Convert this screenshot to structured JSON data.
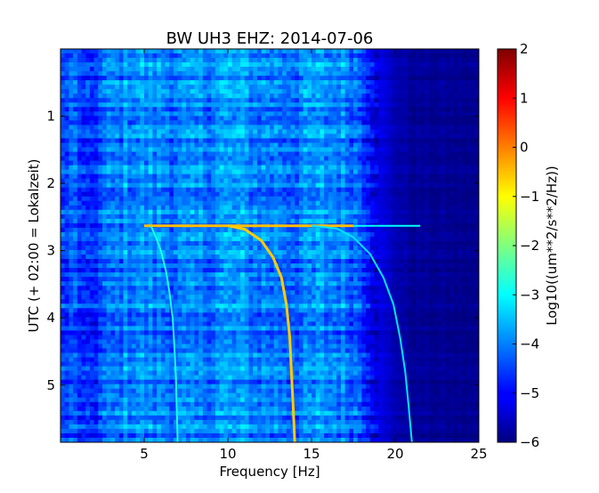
{
  "chart_data": {
    "type": "heatmap",
    "title": "BW UH3 EHZ: 2014-07-06",
    "xlabel": "Frequency [Hz]",
    "ylabel": "UTC (+ 02:00 = Lokalzeit)",
    "colorbar_label": "Log10((um**2/s**2/Hz))",
    "xlim": [
      0,
      25
    ],
    "ylim": [
      5.85,
      0
    ],
    "x_ticks": [
      5,
      10,
      15,
      20,
      25
    ],
    "y_ticks": [
      1,
      2,
      3,
      4,
      5
    ],
    "color_range": [
      -6,
      2
    ],
    "colorbar_ticks": [
      2,
      1,
      0,
      -1,
      -2,
      -3,
      -4,
      -5,
      -6
    ],
    "colormap": "jet",
    "background_level_hz_profile": [
      {
        "x": 0.0,
        "v": -4.6
      },
      {
        "x": 1.0,
        "v": -4.3
      },
      {
        "x": 1.5,
        "v": -5.0
      },
      {
        "x": 2.5,
        "v": -4.3
      },
      {
        "x": 4.0,
        "v": -3.9
      },
      {
        "x": 6.0,
        "v": -4.0
      },
      {
        "x": 8.0,
        "v": -4.1
      },
      {
        "x": 10.0,
        "v": -3.8
      },
      {
        "x": 12.0,
        "v": -4.0
      },
      {
        "x": 14.0,
        "v": -4.1
      },
      {
        "x": 15.5,
        "v": -3.9
      },
      {
        "x": 17.0,
        "v": -4.0
      },
      {
        "x": 18.0,
        "v": -4.3
      },
      {
        "x": 19.0,
        "v": -5.2
      },
      {
        "x": 20.0,
        "v": -5.6
      },
      {
        "x": 21.0,
        "v": -5.8
      },
      {
        "x": 25.0,
        "v": -5.9
      }
    ],
    "horizontal_line": {
      "y": 2.63,
      "x_start": 5.0,
      "x_end": 17.5,
      "level": -0.5
    },
    "series": [
      {
        "x": [
          5.4,
          5.7,
          6.0,
          6.3,
          6.5,
          6.7,
          6.8,
          6.9,
          6.95,
          7.0
        ],
        "y": [
          2.63,
          2.8,
          3.0,
          3.3,
          3.6,
          4.0,
          4.4,
          4.9,
          5.4,
          5.85
        ],
        "level": -2.8
      },
      {
        "x": [
          10.0,
          11.0,
          12.0,
          12.7,
          13.2,
          13.5,
          13.7,
          13.8,
          13.9,
          14.0
        ],
        "y": [
          2.63,
          2.68,
          2.85,
          3.1,
          3.4,
          3.8,
          4.3,
          4.8,
          5.3,
          5.85
        ],
        "level": -0.6
      },
      {
        "x": [
          15.0,
          16.5,
          17.5,
          18.5,
          19.3,
          19.9,
          20.3,
          20.6,
          20.8,
          21.0
        ],
        "y": [
          2.63,
          2.67,
          2.8,
          3.05,
          3.4,
          3.8,
          4.3,
          4.8,
          5.3,
          5.85
        ],
        "level": -3.2
      }
    ]
  }
}
